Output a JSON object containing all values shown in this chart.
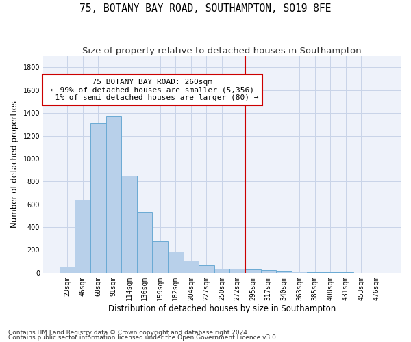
{
  "title": "75, BOTANY BAY ROAD, SOUTHAMPTON, SO19 8FE",
  "subtitle": "Size of property relative to detached houses in Southampton",
  "xlabel": "Distribution of detached houses by size in Southampton",
  "ylabel": "Number of detached properties",
  "footnote1": "Contains HM Land Registry data © Crown copyright and database right 2024.",
  "footnote2": "Contains public sector information licensed under the Open Government Licence v3.0.",
  "bar_labels": [
    "23sqm",
    "46sqm",
    "68sqm",
    "91sqm",
    "114sqm",
    "136sqm",
    "159sqm",
    "182sqm",
    "204sqm",
    "227sqm",
    "250sqm",
    "272sqm",
    "295sqm",
    "317sqm",
    "340sqm",
    "363sqm",
    "385sqm",
    "408sqm",
    "431sqm",
    "453sqm",
    "476sqm"
  ],
  "bar_values": [
    50,
    640,
    1310,
    1370,
    850,
    530,
    275,
    185,
    105,
    65,
    35,
    35,
    30,
    25,
    15,
    8,
    5,
    3,
    2,
    1,
    1
  ],
  "bar_color": "#b8d0ea",
  "bar_edgecolor": "#6aaad4",
  "vline_x": 11.5,
  "vline_color": "#cc0000",
  "annotation_text": "  75 BOTANY BAY ROAD: 260sqm  \n← 99% of detached houses are smaller (5,356)\n  1% of semi-detached houses are larger (80) →",
  "ylim": [
    0,
    1900
  ],
  "yticks": [
    0,
    200,
    400,
    600,
    800,
    1000,
    1200,
    1400,
    1600,
    1800
  ],
  "background_color": "#eef2fa",
  "grid_color": "#c8d4e8",
  "title_fontsize": 10.5,
  "subtitle_fontsize": 9.5,
  "axis_label_fontsize": 8.5,
  "tick_fontsize": 7,
  "annotation_fontsize": 8,
  "footnote_fontsize": 6.5
}
